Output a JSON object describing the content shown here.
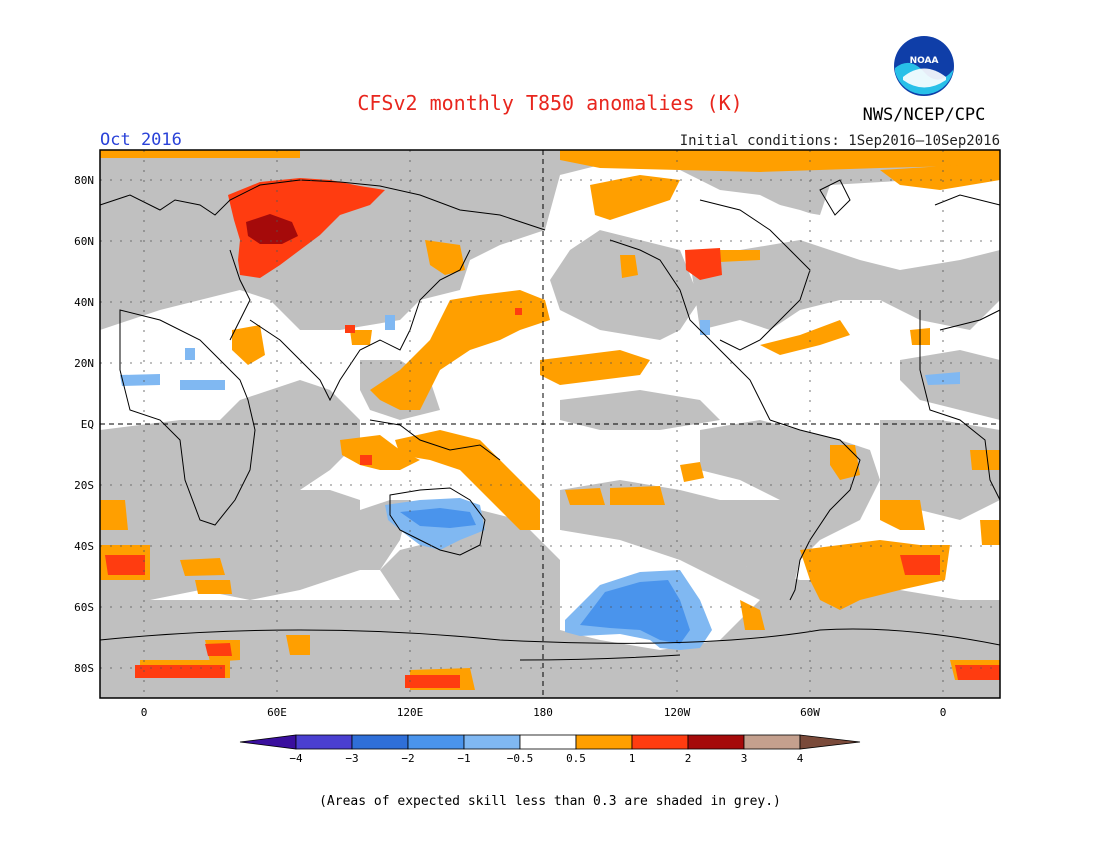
{
  "header": {
    "title": "CFSv2 monthly T850 anomalies (K)",
    "month": "Oct 2016",
    "agency": "NWS/NCEP/CPC",
    "logo_text": "NOAA",
    "initial_conditions": "Initial conditions: 1Sep2016–10Sep2016"
  },
  "map": {
    "lat_labels": [
      "80N",
      "60N",
      "40N",
      "20N",
      "EQ",
      "20S",
      "40S",
      "60S",
      "80S"
    ],
    "lon_labels": [
      "0",
      "60E",
      "120E",
      "180",
      "120W",
      "60W",
      "0"
    ]
  },
  "colorbar": {
    "labels": [
      "−4",
      "−3",
      "−2",
      "−1",
      "−0.5",
      "0.5",
      "1",
      "2",
      "3",
      "4"
    ],
    "colors": [
      "#3a0f9e",
      "#4a3fd0",
      "#2f6fd8",
      "#4a94ec",
      "#80b8f2",
      "#ffffff",
      "#ff9f00",
      "#ff3c10",
      "#a50a0a",
      "#c4a08e",
      "#7a4a3a"
    ]
  },
  "footnote": "(Areas of expected skill less than 0.3 are shaded in grey.)",
  "colors": {
    "title": "#e8261e",
    "month": "#2a42d8",
    "grey": "#c0c0c0",
    "orange": "#ff9f00",
    "red": "#ff3c10",
    "darkred": "#a50a0a",
    "lightblue": "#80b8f2",
    "blue": "#4a94ec"
  }
}
